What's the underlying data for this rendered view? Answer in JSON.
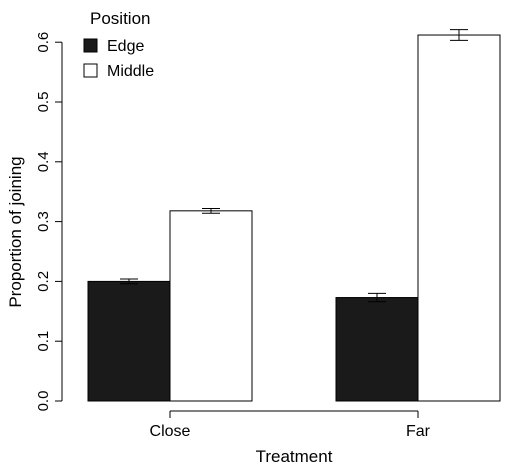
{
  "chart_data": {
    "type": "bar",
    "xlabel": "Treatment",
    "ylabel": "Proportion of joining",
    "ylim": [
      0,
      0.62
    ],
    "yticks": [
      0.0,
      0.1,
      0.2,
      0.3,
      0.4,
      0.5,
      0.6
    ],
    "ytick_labels": [
      "0.0",
      "0.1",
      "0.2",
      "0.3",
      "0.4",
      "0.5",
      "0.6"
    ],
    "categories": [
      "Close",
      "Far"
    ],
    "legend": {
      "title": "Position",
      "placement": "top-left"
    },
    "series": [
      {
        "name": "Edge",
        "color": "#1a1a1a",
        "values": [
          0.2,
          0.173
        ],
        "errors": [
          0.004,
          0.007
        ]
      },
      {
        "name": "Middle",
        "color": "#ffffff",
        "values": [
          0.318,
          0.612
        ],
        "errors": [
          0.004,
          0.009
        ]
      }
    ],
    "error_bars": true,
    "grid": false
  }
}
